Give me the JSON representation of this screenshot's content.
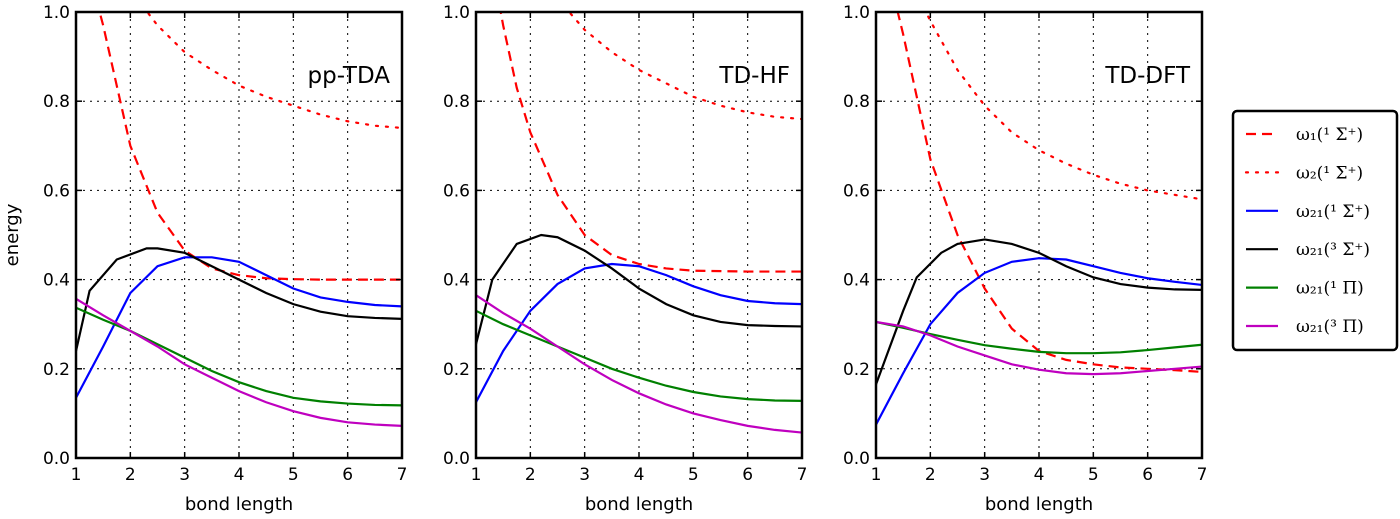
{
  "chart_data": {
    "type": "line",
    "ylabel": "energy",
    "xlabel": "bond length",
    "xlim": [
      1,
      7
    ],
    "ylim": [
      0.0,
      1.0
    ],
    "xticks": [
      "1",
      "2",
      "3",
      "4",
      "5",
      "6",
      "7"
    ],
    "yticks": [
      "0.0",
      "0.2",
      "0.4",
      "0.6",
      "0.8",
      "1.0"
    ],
    "grid": true,
    "legend_placement": "right, outside",
    "series_styles": [
      {
        "name": "ω₁(¹ Σ⁺)",
        "color": "#ff0000",
        "dash": "dashed"
      },
      {
        "name": "ω₂(¹ Σ⁺)",
        "color": "#ff0000",
        "dash": "dotted"
      },
      {
        "name": "ω₂₁(¹ Σ⁺)",
        "color": "#0000ff",
        "dash": "solid"
      },
      {
        "name": "ω₂₁(³ Σ⁺)",
        "color": "#000000",
        "dash": "solid"
      },
      {
        "name": "ω₂₁(¹ Π)",
        "color": "#008000",
        "dash": "solid"
      },
      {
        "name": "ω₂₁(³ Π)",
        "color": "#bf00bf",
        "dash": "solid"
      }
    ],
    "panels": [
      {
        "title": "pp-TDA",
        "series": [
          [
            [
              1,
              1.2
            ],
            [
              1.5,
              0.97
            ],
            [
              2,
              0.7
            ],
            [
              2.5,
              0.55
            ],
            [
              3,
              0.465
            ],
            [
              3.5,
              0.425
            ],
            [
              4,
              0.41
            ],
            [
              4.5,
              0.403
            ],
            [
              5,
              0.401
            ],
            [
              5.5,
              0.4
            ],
            [
              6,
              0.4
            ],
            [
              6.5,
              0.4
            ],
            [
              7,
              0.4
            ]
          ],
          [
            [
              2,
              1.05
            ],
            [
              2.5,
              0.97
            ],
            [
              3,
              0.91
            ],
            [
              3.5,
              0.87
            ],
            [
              4,
              0.835
            ],
            [
              4.5,
              0.81
            ],
            [
              5,
              0.79
            ],
            [
              5.5,
              0.77
            ],
            [
              6,
              0.755
            ],
            [
              6.5,
              0.745
            ],
            [
              7,
              0.74
            ]
          ],
          [
            [
              1,
              0.135
            ],
            [
              1.5,
              0.25
            ],
            [
              2,
              0.37
            ],
            [
              2.5,
              0.43
            ],
            [
              3,
              0.45
            ],
            [
              3.5,
              0.45
            ],
            [
              4,
              0.44
            ],
            [
              4.5,
              0.41
            ],
            [
              5,
              0.38
            ],
            [
              5.5,
              0.36
            ],
            [
              6,
              0.35
            ],
            [
              6.5,
              0.343
            ],
            [
              7,
              0.34
            ]
          ],
          [
            [
              1,
              0.24
            ],
            [
              1.25,
              0.375
            ],
            [
              1.75,
              0.445
            ],
            [
              2.3,
              0.47
            ],
            [
              2.5,
              0.47
            ],
            [
              3,
              0.46
            ],
            [
              3.5,
              0.43
            ],
            [
              4,
              0.4
            ],
            [
              4.5,
              0.37
            ],
            [
              5,
              0.345
            ],
            [
              5.5,
              0.328
            ],
            [
              6,
              0.318
            ],
            [
              6.5,
              0.314
            ],
            [
              7,
              0.312
            ]
          ],
          [
            [
              1,
              0.337
            ],
            [
              1.5,
              0.31
            ],
            [
              2,
              0.285
            ],
            [
              2.5,
              0.255
            ],
            [
              3,
              0.225
            ],
            [
              3.5,
              0.195
            ],
            [
              4,
              0.17
            ],
            [
              4.5,
              0.15
            ],
            [
              5,
              0.135
            ],
            [
              5.5,
              0.127
            ],
            [
              6,
              0.122
            ],
            [
              6.5,
              0.119
            ],
            [
              7,
              0.118
            ]
          ],
          [
            [
              1,
              0.357
            ],
            [
              1.5,
              0.32
            ],
            [
              2,
              0.285
            ],
            [
              2.5,
              0.25
            ],
            [
              3,
              0.21
            ],
            [
              3.5,
              0.18
            ],
            [
              4,
              0.15
            ],
            [
              4.5,
              0.125
            ],
            [
              5,
              0.105
            ],
            [
              5.5,
              0.09
            ],
            [
              6,
              0.08
            ],
            [
              6.5,
              0.075
            ],
            [
              7,
              0.072
            ]
          ]
        ]
      },
      {
        "title": "TD-HF",
        "series": [
          [
            [
              1,
              1.3
            ],
            [
              1.5,
              0.97
            ],
            [
              1.75,
              0.83
            ],
            [
              2,
              0.73
            ],
            [
              2.5,
              0.59
            ],
            [
              3,
              0.5
            ],
            [
              3.5,
              0.455
            ],
            [
              4,
              0.435
            ],
            [
              4.5,
              0.425
            ],
            [
              5,
              0.42
            ],
            [
              6,
              0.418
            ],
            [
              7,
              0.418
            ]
          ],
          [
            [
              2.5,
              1.03
            ],
            [
              3,
              0.96
            ],
            [
              3.5,
              0.91
            ],
            [
              4,
              0.87
            ],
            [
              4.5,
              0.84
            ],
            [
              5,
              0.81
            ],
            [
              5.5,
              0.79
            ],
            [
              6,
              0.775
            ],
            [
              6.5,
              0.765
            ],
            [
              7,
              0.76
            ]
          ],
          [
            [
              1,
              0.125
            ],
            [
              1.5,
              0.24
            ],
            [
              2,
              0.33
            ],
            [
              2.5,
              0.39
            ],
            [
              3,
              0.425
            ],
            [
              3.5,
              0.435
            ],
            [
              4,
              0.43
            ],
            [
              4.5,
              0.41
            ],
            [
              5,
              0.385
            ],
            [
              5.5,
              0.365
            ],
            [
              6,
              0.352
            ],
            [
              6.5,
              0.347
            ],
            [
              7,
              0.345
            ]
          ],
          [
            [
              1,
              0.255
            ],
            [
              1.3,
              0.4
            ],
            [
              1.75,
              0.48
            ],
            [
              2.2,
              0.5
            ],
            [
              2.5,
              0.495
            ],
            [
              3,
              0.465
            ],
            [
              3.5,
              0.425
            ],
            [
              4,
              0.38
            ],
            [
              4.5,
              0.345
            ],
            [
              5,
              0.32
            ],
            [
              5.5,
              0.305
            ],
            [
              6,
              0.298
            ],
            [
              6.5,
              0.296
            ],
            [
              7,
              0.295
            ]
          ],
          [
            [
              1,
              0.33
            ],
            [
              1.5,
              0.3
            ],
            [
              2,
              0.275
            ],
            [
              2.5,
              0.25
            ],
            [
              3,
              0.225
            ],
            [
              3.5,
              0.2
            ],
            [
              4,
              0.18
            ],
            [
              4.5,
              0.162
            ],
            [
              5,
              0.148
            ],
            [
              5.5,
              0.138
            ],
            [
              6,
              0.132
            ],
            [
              6.5,
              0.129
            ],
            [
              7,
              0.128
            ]
          ],
          [
            [
              1,
              0.365
            ],
            [
              1.5,
              0.325
            ],
            [
              2,
              0.29
            ],
            [
              2.5,
              0.25
            ],
            [
              3,
              0.21
            ],
            [
              3.5,
              0.175
            ],
            [
              4,
              0.145
            ],
            [
              4.5,
              0.12
            ],
            [
              5,
              0.1
            ],
            [
              5.5,
              0.085
            ],
            [
              6,
              0.072
            ],
            [
              6.5,
              0.063
            ],
            [
              7,
              0.057
            ]
          ]
        ]
      },
      {
        "title": "TD-DFT",
        "series": [
          [
            [
              1,
              1.25
            ],
            [
              1.4,
              1.0
            ],
            [
              1.5,
              0.95
            ],
            [
              2,
              0.67
            ],
            [
              2.5,
              0.5
            ],
            [
              3,
              0.38
            ],
            [
              3.5,
              0.29
            ],
            [
              4,
              0.24
            ],
            [
              4.5,
              0.22
            ],
            [
              5,
              0.21
            ],
            [
              5.5,
              0.203
            ],
            [
              6,
              0.2
            ],
            [
              6.5,
              0.197
            ],
            [
              7,
              0.193
            ]
          ],
          [
            [
              1.8,
              1.03
            ],
            [
              2,
              0.98
            ],
            [
              2.5,
              0.87
            ],
            [
              3,
              0.79
            ],
            [
              3.5,
              0.73
            ],
            [
              4,
              0.69
            ],
            [
              4.5,
              0.66
            ],
            [
              5,
              0.635
            ],
            [
              5.5,
              0.615
            ],
            [
              6,
              0.6
            ],
            [
              6.5,
              0.59
            ],
            [
              7,
              0.58
            ]
          ],
          [
            [
              1,
              0.075
            ],
            [
              1.5,
              0.19
            ],
            [
              2,
              0.3
            ],
            [
              2.5,
              0.37
            ],
            [
              3,
              0.415
            ],
            [
              3.5,
              0.44
            ],
            [
              4,
              0.448
            ],
            [
              4.5,
              0.445
            ],
            [
              5,
              0.43
            ],
            [
              5.5,
              0.415
            ],
            [
              6,
              0.403
            ],
            [
              6.5,
              0.395
            ],
            [
              7,
              0.388
            ]
          ],
          [
            [
              1,
              0.165
            ],
            [
              1.5,
              0.33
            ],
            [
              1.75,
              0.405
            ],
            [
              2.2,
              0.46
            ],
            [
              2.5,
              0.48
            ],
            [
              3,
              0.49
            ],
            [
              3.5,
              0.48
            ],
            [
              4,
              0.46
            ],
            [
              4.5,
              0.43
            ],
            [
              5,
              0.405
            ],
            [
              5.5,
              0.39
            ],
            [
              6,
              0.382
            ],
            [
              6.5,
              0.378
            ],
            [
              7,
              0.377
            ]
          ],
          [
            [
              1,
              0.305
            ],
            [
              1.5,
              0.292
            ],
            [
              2,
              0.278
            ],
            [
              2.5,
              0.265
            ],
            [
              3,
              0.253
            ],
            [
              3.5,
              0.245
            ],
            [
              4,
              0.238
            ],
            [
              4.5,
              0.235
            ],
            [
              5,
              0.235
            ],
            [
              5.5,
              0.237
            ],
            [
              6,
              0.242
            ],
            [
              6.5,
              0.248
            ],
            [
              7,
              0.254
            ]
          ],
          [
            [
              1,
              0.305
            ],
            [
              1.5,
              0.295
            ],
            [
              2,
              0.275
            ],
            [
              2.5,
              0.25
            ],
            [
              3,
              0.23
            ],
            [
              3.5,
              0.21
            ],
            [
              4,
              0.198
            ],
            [
              4.5,
              0.19
            ],
            [
              5,
              0.188
            ],
            [
              5.5,
              0.19
            ],
            [
              6,
              0.195
            ],
            [
              6.5,
              0.2
            ],
            [
              7,
              0.205
            ]
          ]
        ]
      }
    ]
  }
}
